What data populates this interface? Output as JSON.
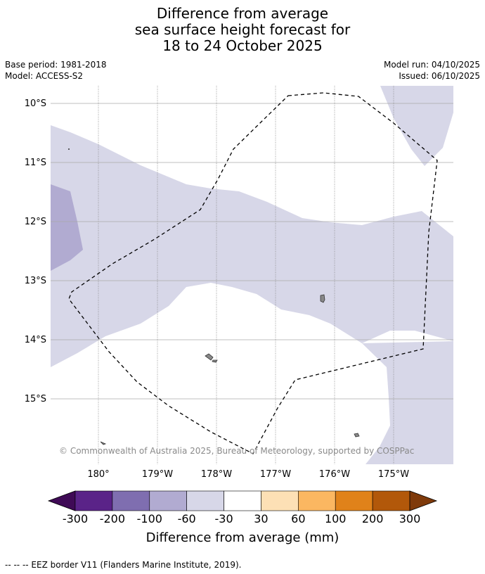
{
  "title": {
    "line1": "Difference from average",
    "line2": "sea surface height forecast for",
    "line3": "18 to 24 October 2025"
  },
  "meta": {
    "base_period": "Base period: 1981-2018",
    "model": "Model: ACCESS-S2",
    "model_run": "Model run: 04/10/2025",
    "issued": "Issued: 06/10/2025"
  },
  "map": {
    "lat_labels": [
      "10°S",
      "11°S",
      "12°S",
      "13°S",
      "14°S",
      "15°S"
    ],
    "lon_labels": [
      "180°",
      "179°W",
      "178°W",
      "177°W",
      "176°W",
      "175°W"
    ],
    "copyright": "© Commonwealth of Australia 2025, Bureau of Meteorology, supported by COSPPac",
    "colors": {
      "band_light_purple": "#d7d7e8",
      "band_mid_purple": "#b1abd1",
      "land": "#888888",
      "eez_line": "#000000"
    }
  },
  "colorbar": {
    "title": "Difference from average (mm)",
    "tick_labels": [
      "-300",
      "-200",
      "-100",
      "-60",
      "-30",
      "30",
      "60",
      "100",
      "200",
      "300"
    ],
    "colors": [
      "#3f0a56",
      "#5a2388",
      "#7f6eb0",
      "#b1abd1",
      "#d7d7e8",
      "#ffffff",
      "#fde0b5",
      "#fbb761",
      "#e0821a",
      "#b2580a",
      "#7f3a0b"
    ]
  },
  "footer": "--  --  -- EEZ border V11 (Flanders Marine Institute, 2019)."
}
